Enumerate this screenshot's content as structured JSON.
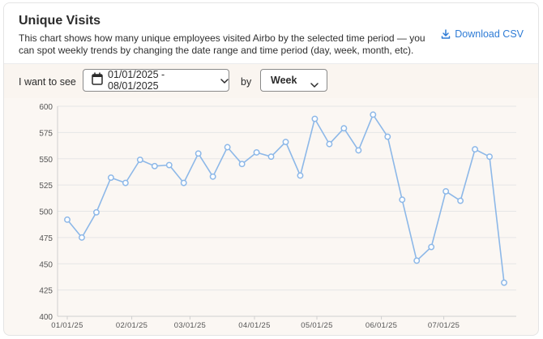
{
  "header": {
    "title": "Unique Visits",
    "description": "This chart shows how many unique employees visited Airbo by the selected time period — you can spot weekly trends by changing the date range and time period (day, week, month, etc).",
    "download_label": "Download CSV",
    "download_icon": "download-icon"
  },
  "controls": {
    "prefix_label": "I want to see",
    "date_range": "01/01/2025 - 08/01/2025",
    "date_icon": "calendar-icon",
    "by_label": "by",
    "period_value": "Week"
  },
  "colors": {
    "line": "#8db8e8",
    "accent": "#2f7cd6",
    "grid": "#e6e6e6"
  },
  "chart_data": {
    "type": "line",
    "ylim": [
      400,
      600
    ],
    "y_ticks": [
      600,
      575,
      550,
      525,
      500,
      475,
      450,
      425,
      400
    ],
    "x_ticks": [
      "01/01/25",
      "02/01/25",
      "03/01/25",
      "04/01/25",
      "05/01/25",
      "06/01/25",
      "07/01/25"
    ],
    "x": [
      "2025-01-01",
      "2025-01-08",
      "2025-01-15",
      "2025-01-22",
      "2025-01-29",
      "2025-02-05",
      "2025-02-12",
      "2025-02-19",
      "2025-02-26",
      "2025-03-05",
      "2025-03-12",
      "2025-03-19",
      "2025-03-26",
      "2025-04-02",
      "2025-04-09",
      "2025-04-16",
      "2025-04-23",
      "2025-04-30",
      "2025-05-07",
      "2025-05-14",
      "2025-05-21",
      "2025-05-28",
      "2025-06-04",
      "2025-06-11",
      "2025-06-18",
      "2025-06-25",
      "2025-07-02",
      "2025-07-09",
      "2025-07-16",
      "2025-07-23",
      "2025-07-30"
    ],
    "values": [
      492,
      475,
      499,
      532,
      527,
      549,
      543,
      544,
      527,
      555,
      533,
      561,
      545,
      556,
      552,
      566,
      534,
      588,
      564,
      579,
      558,
      592,
      571,
      511,
      453,
      466,
      519,
      510,
      559,
      552,
      432
    ],
    "grid": true
  }
}
